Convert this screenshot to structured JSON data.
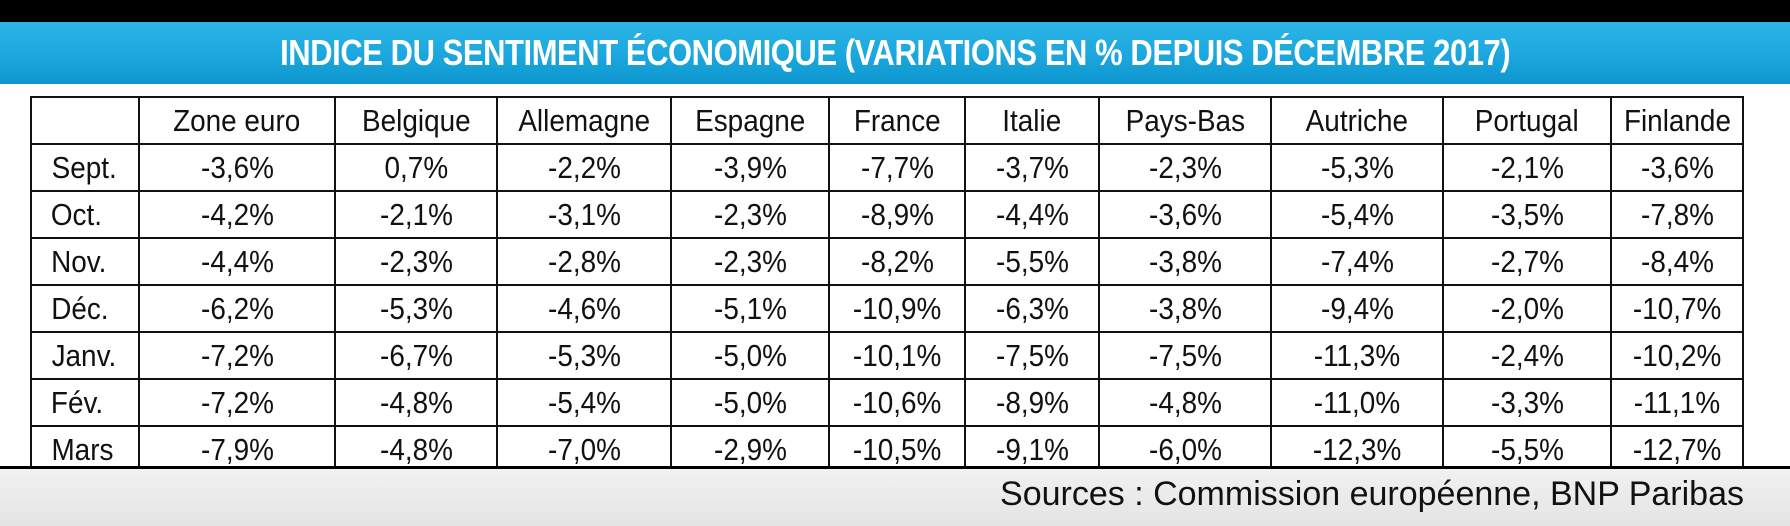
{
  "chart_data": {
    "type": "table",
    "title": "INDICE DU SENTIMENT ÉCONOMIQUE (VARIATIONS EN % DEPUIS DÉCEMBRE 2017)",
    "columns": [
      "Zone euro",
      "Belgique",
      "Allemagne",
      "Espagne",
      "France",
      "Italie",
      "Pays-Bas",
      "Autriche",
      "Portugal",
      "Finlande"
    ],
    "rows": [
      {
        "label": "Sept.",
        "values": [
          "-3,6%",
          "0,7%",
          "-2,2%",
          "-3,9%",
          "-7,7%",
          "-3,7%",
          "-2,3%",
          "-5,3%",
          "-2,1%",
          "-3,6%"
        ]
      },
      {
        "label": "Oct.",
        "values": [
          "-4,2%",
          "-2,1%",
          "-3,1%",
          "-2,3%",
          "-8,9%",
          "-4,4%",
          "-3,6%",
          "-5,4%",
          "-3,5%",
          "-7,8%"
        ]
      },
      {
        "label": "Nov.",
        "values": [
          "-4,4%",
          "-2,3%",
          "-2,8%",
          "-2,3%",
          "-8,2%",
          "-5,5%",
          "-3,8%",
          "-7,4%",
          "-2,7%",
          "-8,4%"
        ]
      },
      {
        "label": "Déc.",
        "values": [
          "-6,2%",
          "-5,3%",
          "-4,6%",
          "-5,1%",
          "-10,9%",
          "-6,3%",
          "-3,8%",
          "-9,4%",
          "-2,0%",
          "-10,7%"
        ]
      },
      {
        "label": "Janv.",
        "values": [
          "-7,2%",
          "-6,7%",
          "-5,3%",
          "-5,0%",
          "-10,1%",
          "-7,5%",
          "-7,5%",
          "-11,3%",
          "-2,4%",
          "-10,2%"
        ]
      },
      {
        "label": "Fév.",
        "values": [
          "-7,2%",
          "-4,8%",
          "-5,4%",
          "-5,0%",
          "-10,6%",
          "-8,9%",
          "-4,8%",
          "-11,0%",
          "-3,3%",
          "-11,1%"
        ]
      },
      {
        "label": "Mars",
        "values": [
          "-7,9%",
          "-4,8%",
          "-7,0%",
          "-2,9%",
          "-10,5%",
          "-9,1%",
          "-6,0%",
          "-12,3%",
          "-5,5%",
          "-12,7%"
        ]
      }
    ],
    "source": "Sources : Commission européenne, BNP Paribas"
  },
  "colors": {
    "title_band": "#1ba7de",
    "title_text": "#ffffff",
    "top_bar": "#000000",
    "grid": "#111111",
    "footer": "#e9e9e9"
  }
}
